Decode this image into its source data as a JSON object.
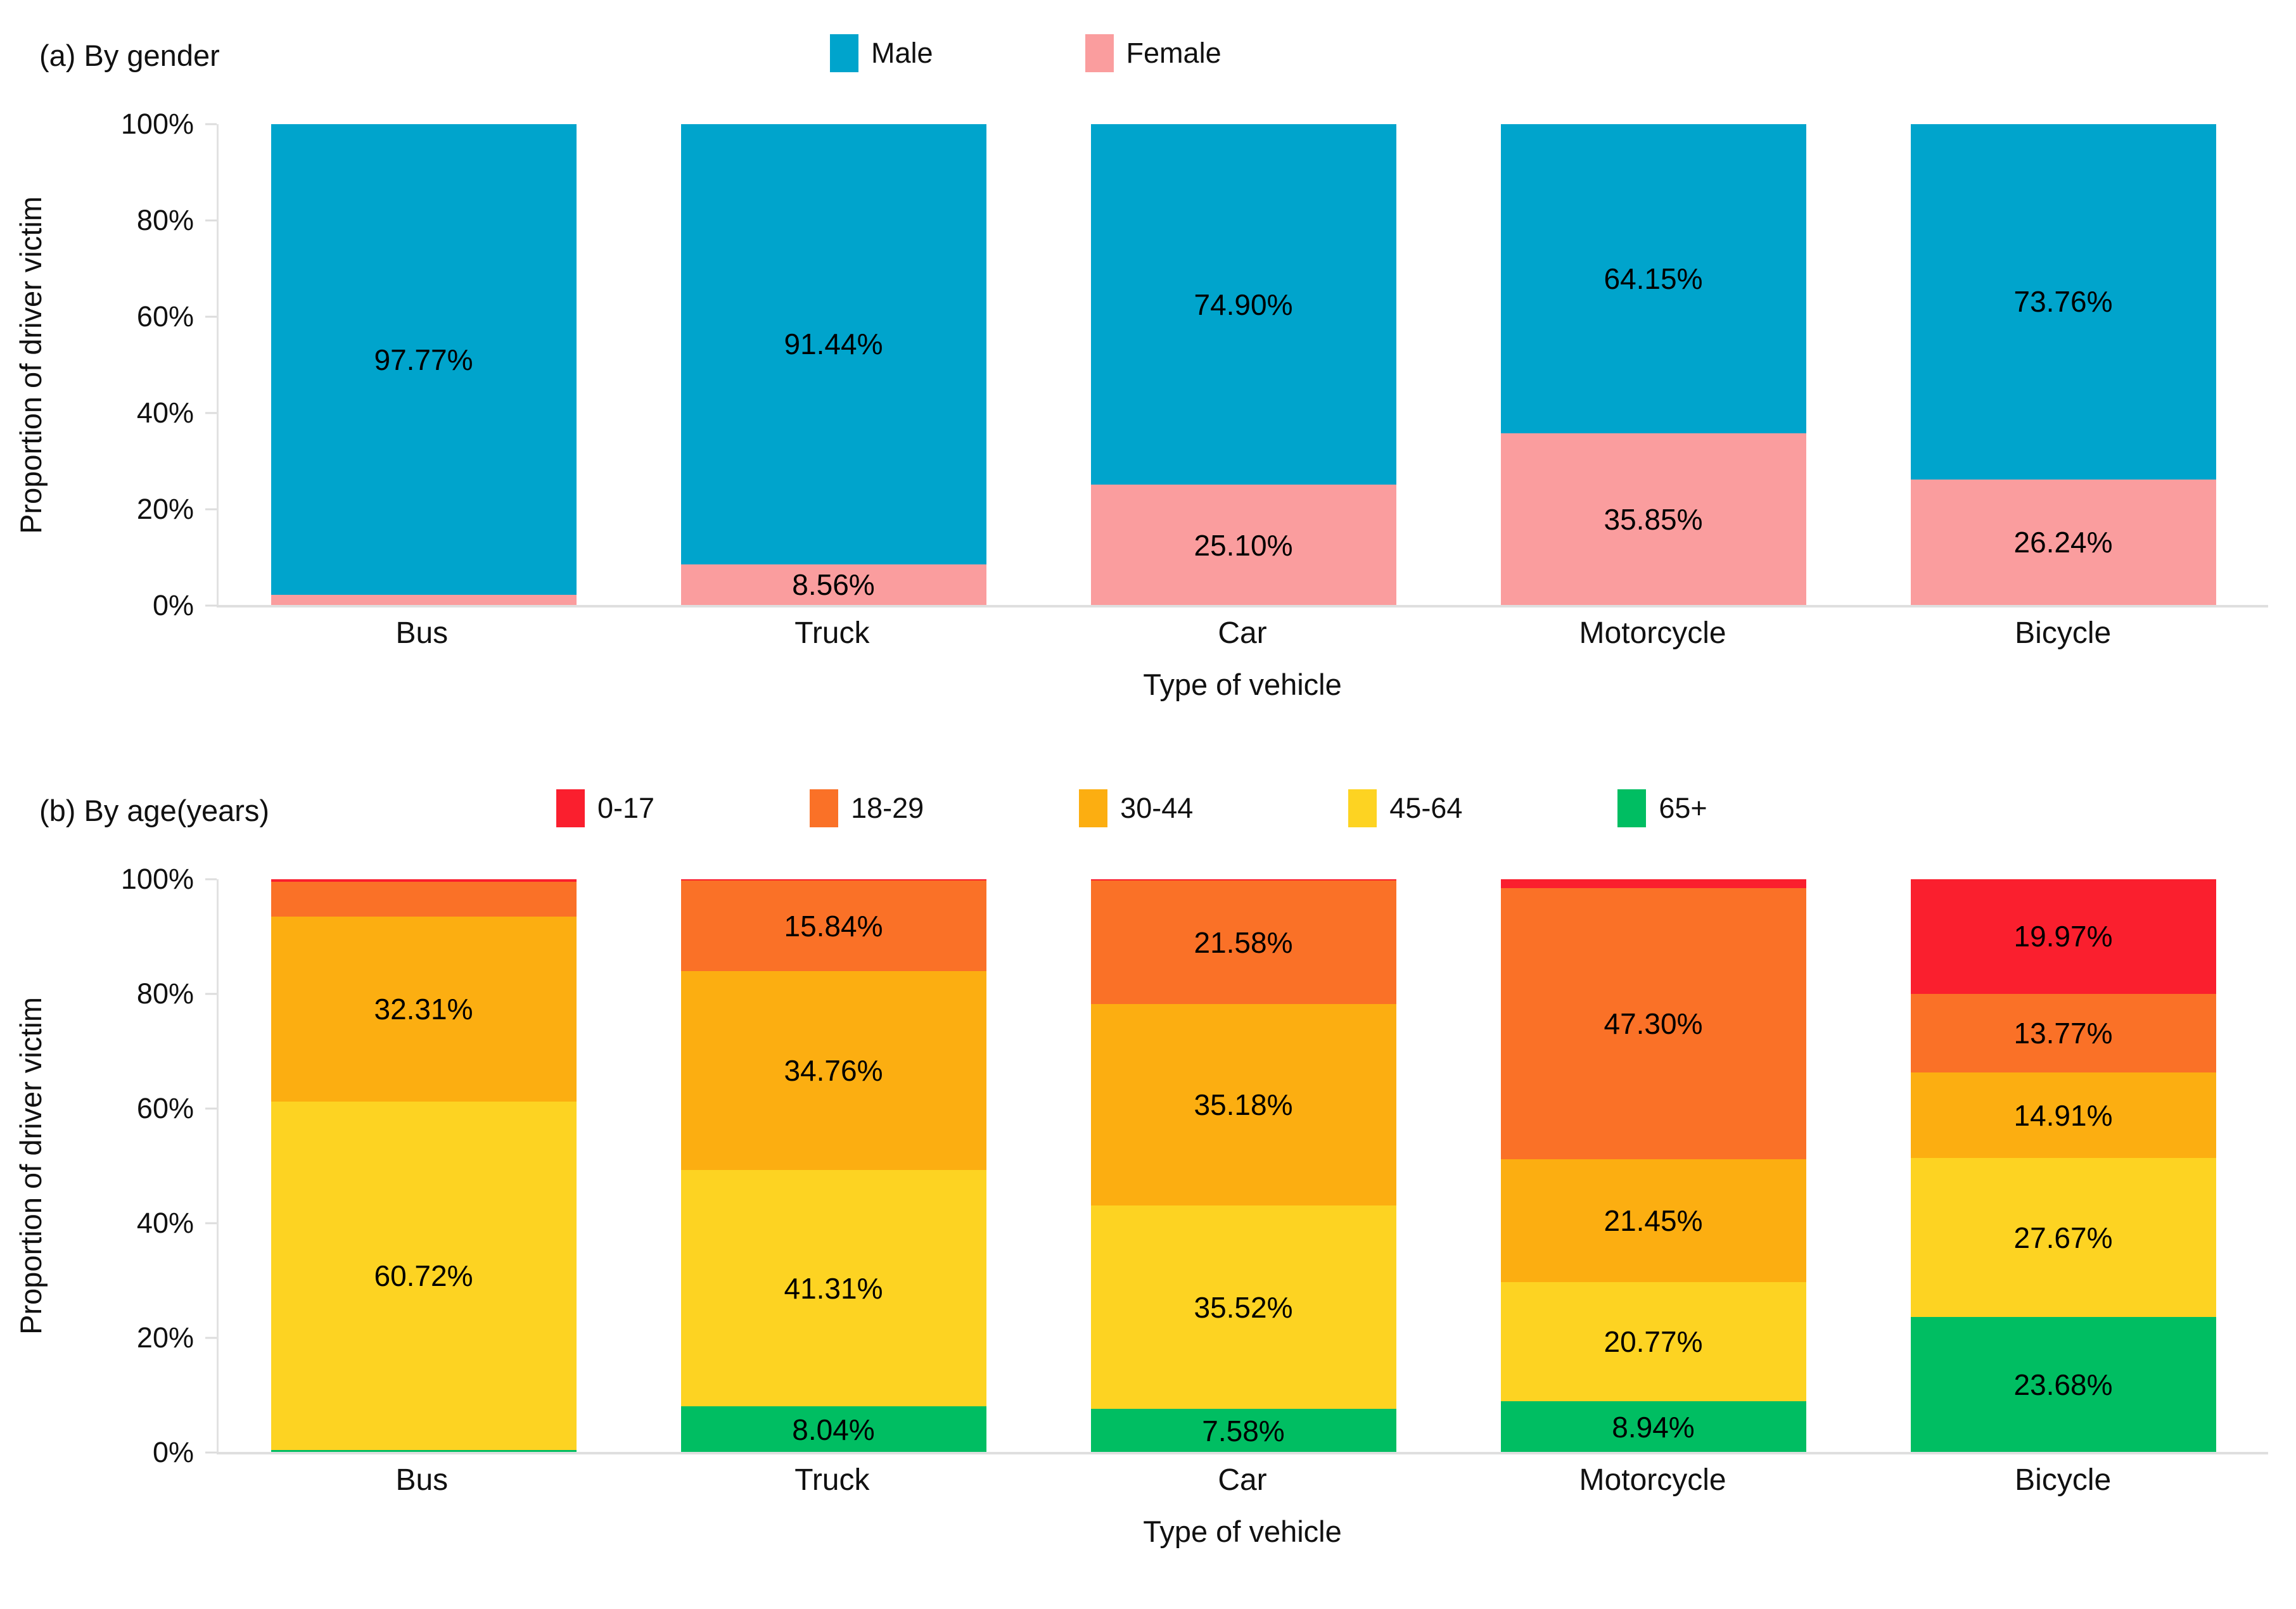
{
  "page": {
    "background": "#FFFFFF"
  },
  "chart_data": [
    {
      "type": "bar",
      "stacked": true,
      "orientation": "vertical",
      "title": "(a) By gender",
      "xlabel": "Type of vehicle",
      "ylabel": "Proportion of driver victim",
      "ylim": [
        0,
        100
      ],
      "grid": false,
      "legend_position": "top",
      "yticks": [
        {
          "pos": 0,
          "label": "0%"
        },
        {
          "pos": 20,
          "label": "20%"
        },
        {
          "pos": 40,
          "label": "40%"
        },
        {
          "pos": 60,
          "label": "60%"
        },
        {
          "pos": 80,
          "label": "80%"
        },
        {
          "pos": 100,
          "label": "100%"
        }
      ],
      "categories": [
        "Bus",
        "Truck",
        "Car",
        "Motorcycle",
        "Bicycle"
      ],
      "series": [
        {
          "name": "Male",
          "color": "#00A4CC",
          "values": [
            97.77,
            91.44,
            74.9,
            64.15,
            73.76
          ],
          "labels": [
            "97.77%",
            "91.44%",
            "74.90%",
            "64.15%",
            "73.76%"
          ]
        },
        {
          "name": "Female",
          "color": "#FA9D9E",
          "values": [
            2.23,
            8.56,
            25.1,
            35.85,
            26.24
          ],
          "labels": [
            "",
            "8.56%",
            "25.10%",
            "35.85%",
            "26.24%"
          ]
        }
      ]
    },
    {
      "type": "bar",
      "stacked": true,
      "orientation": "vertical",
      "title": "(b) By age(years)",
      "xlabel": "Type of vehicle",
      "ylabel": "Proportion of driver victim",
      "ylim": [
        0,
        100
      ],
      "grid": false,
      "legend_position": "top",
      "yticks": [
        {
          "pos": 0,
          "label": "0%"
        },
        {
          "pos": 20,
          "label": "20%"
        },
        {
          "pos": 40,
          "label": "40%"
        },
        {
          "pos": 60,
          "label": "60%"
        },
        {
          "pos": 80,
          "label": "80%"
        },
        {
          "pos": 100,
          "label": "100%"
        }
      ],
      "categories": [
        "Bus",
        "Truck",
        "Car",
        "Motorcycle",
        "Bicycle"
      ],
      "series": [
        {
          "name": "0-17",
          "color": "#FA1F2E",
          "values": [
            0.4,
            0.05,
            0.14,
            1.54,
            19.97
          ],
          "labels": [
            "",
            "",
            "",
            "",
            "19.97%"
          ]
        },
        {
          "name": "18-29",
          "color": "#FA7127",
          "values": [
            6.1,
            15.84,
            21.58,
            47.3,
            13.77
          ],
          "labels": [
            "",
            "15.84%",
            "21.58%",
            "47.30%",
            "13.77%"
          ]
        },
        {
          "name": "30-44",
          "color": "#FCAE11",
          "values": [
            32.31,
            34.76,
            35.18,
            21.45,
            14.91
          ],
          "labels": [
            "32.31%",
            "34.76%",
            "35.18%",
            "21.45%",
            "14.91%"
          ]
        },
        {
          "name": "45-64",
          "color": "#FDD322",
          "values": [
            60.72,
            41.31,
            35.52,
            20.77,
            27.67
          ],
          "labels": [
            "60.72%",
            "41.31%",
            "35.52%",
            "20.77%",
            "27.67%"
          ]
        },
        {
          "name": "65+",
          "color": "#00BE62",
          "values": [
            0.47,
            8.04,
            7.58,
            8.94,
            23.68
          ],
          "labels": [
            "",
            "8.04%",
            "7.58%",
            "8.94%",
            "23.68%"
          ]
        }
      ]
    }
  ]
}
